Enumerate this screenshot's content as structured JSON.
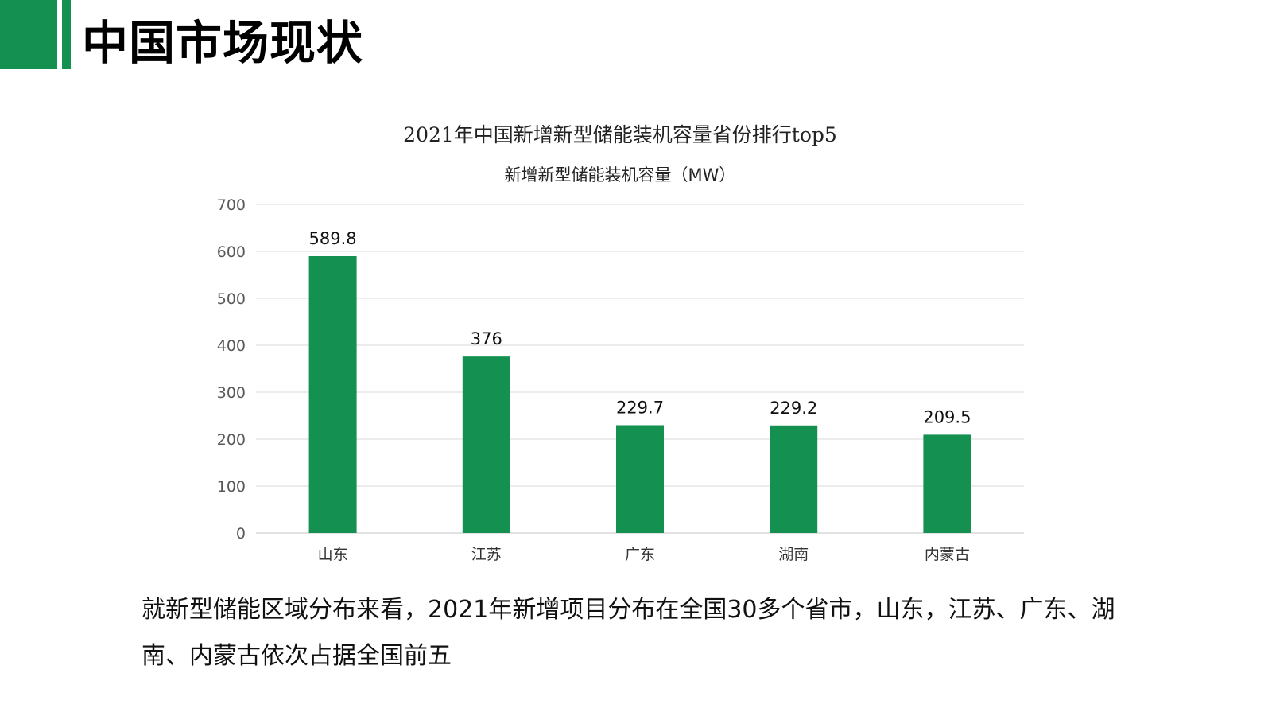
{
  "header": {
    "title": "中国市场现状",
    "accent_color": "#149150"
  },
  "chart_data": {
    "type": "bar",
    "title": "2021年中国新增新型储能装机容量省份排行top5",
    "ylabel": "新增新型储能装机容量（MW）",
    "xlabel": "",
    "categories": [
      "山东",
      "江苏",
      "广东",
      "湖南",
      "内蒙古"
    ],
    "values": [
      589.8,
      376,
      229.7,
      229.2,
      209.5
    ],
    "value_labels": [
      "589.8",
      "376",
      "229.7",
      "229.2",
      "209.5"
    ],
    "ylim": [
      0,
      700
    ],
    "yticks": [
      0,
      100,
      200,
      300,
      400,
      500,
      600,
      700
    ],
    "grid": true,
    "bar_color": "#149150"
  },
  "paragraph": "就新型储能区域分布来看，2021年新增项目分布在全国30多个省市，山东，江苏、广东、湖南、内蒙古依次占据全国前五"
}
